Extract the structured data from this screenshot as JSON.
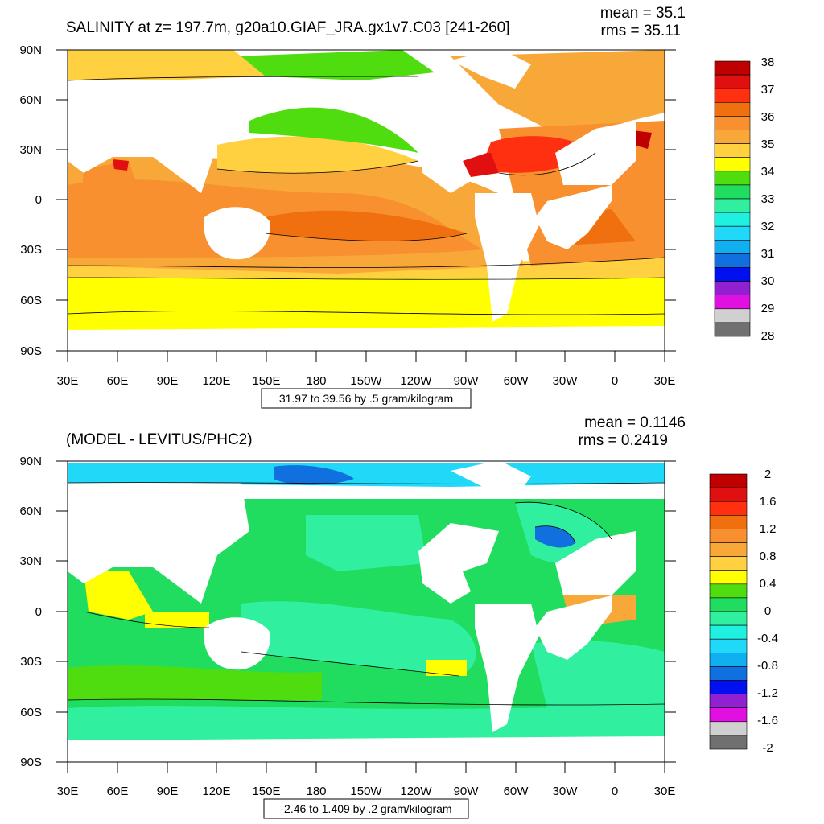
{
  "panels": [
    {
      "title": "SALINITY at z= 197.7m, g20a10.GIAF_JRA.gx1v7.C03 [241-260]",
      "stats": {
        "mean": "mean = 35.1",
        "rms": "rms = 35.11"
      },
      "lat_ticks": [
        "90N",
        "60N",
        "30N",
        "0",
        "30S",
        "60S",
        "90S"
      ],
      "lon_ticks": [
        "30E",
        "60E",
        "90E",
        "120E",
        "150E",
        "180",
        "150W",
        "120W",
        "90W",
        "60W",
        "30W",
        "0",
        "30E"
      ],
      "range_note": "31.97 to 39.56 by .5 gram/kilogram",
      "colorbar": {
        "labels": [
          "38",
          "37",
          "36",
          "35",
          "34",
          "33",
          "32",
          "31",
          "30",
          "29",
          "28"
        ],
        "colors": [
          "#c00000",
          "#e01010",
          "#ff3010",
          "#f07010",
          "#f89030",
          "#f8a838",
          "#ffd040",
          "#ffff00",
          "#50dd10",
          "#20dd60",
          "#30f0a0",
          "#20f0e0",
          "#20d8f8",
          "#10b0f0",
          "#1070e0",
          "#0010f0",
          "#9020d0",
          "#e010e0",
          "#d0d0d0",
          "#707070"
        ]
      }
    },
    {
      "title": "(MODEL - LEVITUS/PHC2)",
      "stats": {
        "mean": "mean = 0.1146",
        "rms": "rms = 0.2419"
      },
      "lat_ticks": [
        "90N",
        "60N",
        "30N",
        "0",
        "30S",
        "60S",
        "90S"
      ],
      "lon_ticks": [
        "30E",
        "60E",
        "90E",
        "120E",
        "150E",
        "180",
        "150W",
        "120W",
        "90W",
        "60W",
        "30W",
        "0",
        "30E"
      ],
      "range_note": "-2.46 to 1.409 by .2 gram/kilogram",
      "colorbar": {
        "labels": [
          "2",
          "1.6",
          "1.2",
          "0.8",
          "0.4",
          "0",
          "-0.4",
          "-0.8",
          "-1.2",
          "-1.6",
          "-2"
        ],
        "colors": [
          "#c00000",
          "#e01010",
          "#ff3010",
          "#f07010",
          "#f89030",
          "#f8a838",
          "#ffd040",
          "#ffff00",
          "#50dd10",
          "#20dd60",
          "#30f0a0",
          "#20f0e0",
          "#20d8f8",
          "#10b0f0",
          "#1070e0",
          "#0010f0",
          "#9020d0",
          "#e010e0",
          "#d0d0d0",
          "#707070"
        ]
      }
    }
  ]
}
